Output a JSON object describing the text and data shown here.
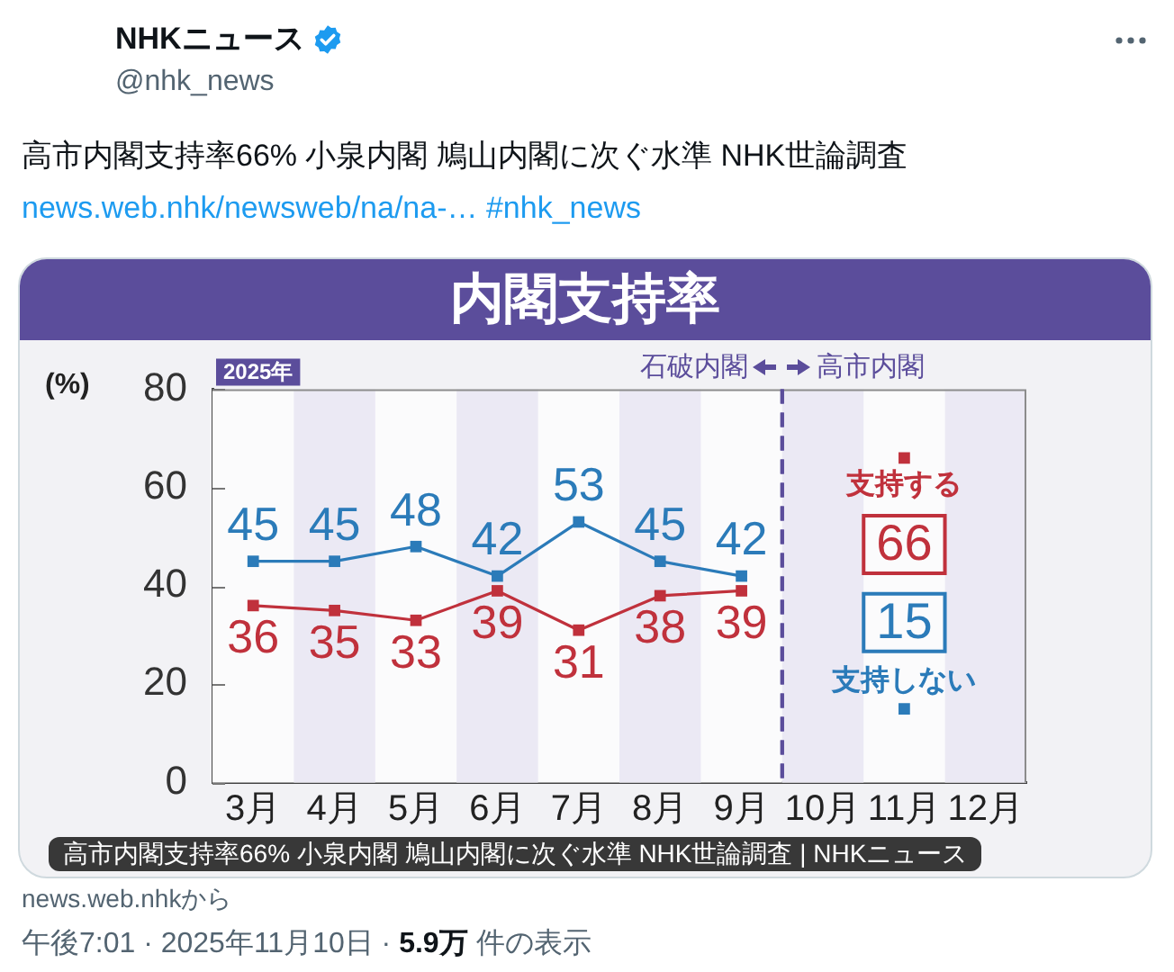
{
  "chart_data": {
    "type": "line",
    "title": "内閣支持率",
    "ylabel": "(%)",
    "categories": [
      "3月",
      "4月",
      "5月",
      "6月",
      "7月",
      "8月",
      "9月",
      "10月",
      "11月",
      "12月"
    ],
    "series": [
      {
        "name": "支持する",
        "color": "#c0313c",
        "values": [
          36,
          35,
          33,
          39,
          31,
          38,
          39,
          null,
          66,
          null
        ]
      },
      {
        "name": "支持しない",
        "color": "#2b7bb9",
        "values": [
          45,
          45,
          48,
          42,
          53,
          45,
          42,
          null,
          15,
          null
        ]
      }
    ],
    "ylim": [
      0,
      80
    ],
    "yticks": [
      0,
      20,
      40,
      60,
      80
    ],
    "marker": "square",
    "data_labels": true,
    "legend": "right",
    "bands": [
      {
        "axis": "x",
        "from": "3月",
        "to": "9月",
        "label": "石破内閣",
        "color": "#fbfbfc"
      },
      {
        "axis": "x",
        "from": "10月",
        "to": "12月",
        "label": "高市内閣",
        "color": "#fbfbfc"
      },
      {
        "axis": "x",
        "from": "4月",
        "to": "4月",
        "color": "#ebe9f4"
      },
      {
        "axis": "x",
        "from": "6月",
        "to": "6月",
        "color": "#ebe9f4"
      },
      {
        "axis": "x",
        "from": "8月",
        "to": "8月",
        "color": "#ebe9f4"
      },
      {
        "axis": "x",
        "from": "10月",
        "to": "10月",
        "color": "#ebe9f4"
      },
      {
        "axis": "x",
        "from": "12月",
        "to": "12月",
        "color": "#ebe9f4"
      }
    ],
    "annotations": [
      "NHKニュース",
      "@nhk_news",
      "高市内閣支持率66% 小泉内閣 鳩山内閣に次ぐ水準 NHK世論調査",
      "news.web.nhk/newsweb/na/na-… #nhk_news",
      "2025年",
      "高市内閣支持率66% 小泉内閣 鳩山内閣に次ぐ水準 NHK世論調査 | NHKニュース",
      "news.web.nhkから",
      "午後7:01 · 2025年11月10日 ·",
      "5.9万",
      "件の表示"
    ]
  }
}
